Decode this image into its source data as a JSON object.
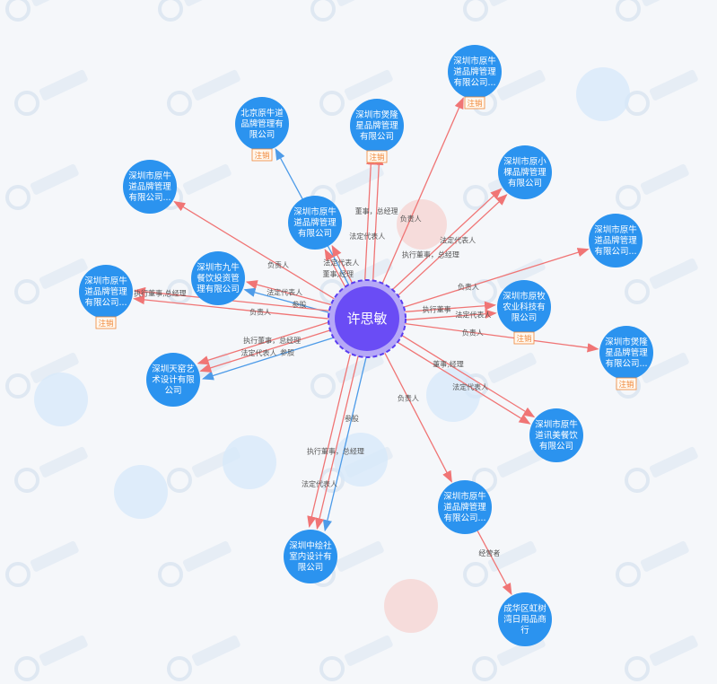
{
  "watermark": "天眼查",
  "center": {
    "label": "许思敏",
    "color": "#6a4cf5"
  },
  "colors": {
    "node": "#2b93ef",
    "edge_role": "#f07575",
    "edge_invest": "#4d9be8",
    "badge": "#f0883a"
  },
  "badge_label": "注销",
  "nodes": [
    {
      "lines": [
        "北京原牛道",
        "品牌管理有",
        "限公司"
      ],
      "badge": true
    },
    {
      "lines": [
        "深圳市煲隆",
        "星品牌管理",
        "有限公司"
      ],
      "badge": true
    },
    {
      "lines": [
        "深圳市原牛",
        "道品牌管理",
        "有限公司..."
      ],
      "badge": true
    },
    {
      "lines": [
        "深圳市原小",
        "棵品牌管理",
        "有限公司"
      ],
      "badge": false
    },
    {
      "lines": [
        "深圳市原牛",
        "道品牌管理",
        "有限公司..."
      ],
      "badge": false
    },
    {
      "lines": [
        "深圳市原牛",
        "道品牌管理",
        "有限公司"
      ],
      "badge": false
    },
    {
      "lines": [
        "深圳市原牛",
        "道品牌管理",
        "有限公司..."
      ],
      "badge": false
    },
    {
      "lines": [
        "深圳市九牛",
        "餐饮投资管",
        "理有限公司"
      ],
      "badge": false
    },
    {
      "lines": [
        "深圳市原牛",
        "道品牌管理",
        "有限公司..."
      ],
      "badge": true
    },
    {
      "lines": [
        "深圳市原牧",
        "农业科技有",
        "限公司"
      ],
      "badge": true
    },
    {
      "lines": [
        "深圳市煲隆",
        "星品牌管理",
        "有限公司..."
      ],
      "badge": true
    },
    {
      "lines": [
        "深圳天窑艺",
        "术设计有限",
        "公司"
      ],
      "badge": false
    },
    {
      "lines": [
        "深圳市原牛",
        "道讯美餐饮",
        "有限公司"
      ],
      "badge": false
    },
    {
      "lines": [
        "深圳市原牛",
        "道品牌管理",
        "有限公司..."
      ],
      "badge": false
    },
    {
      "lines": [
        "深圳中绘社",
        "室内设计有",
        "限公司"
      ],
      "badge": false
    },
    {
      "lines": [
        "成华区虹树",
        "湾日用品商",
        "行"
      ],
      "badge": false
    }
  ],
  "edges": [
    {
      "to": 0,
      "label": "",
      "type": "invest"
    },
    {
      "to": 1,
      "label": "法定代表人",
      "type": "role"
    },
    {
      "to": 1,
      "label": "董事，总经理",
      "type": "role"
    },
    {
      "to": 2,
      "label": "负责人",
      "type": "role"
    },
    {
      "to": 3,
      "label": "执行董事，总经理",
      "type": "role"
    },
    {
      "to": 3,
      "label": "法定代表人",
      "type": "role"
    },
    {
      "to": 4,
      "label": "负责人",
      "type": "role"
    },
    {
      "to": 5,
      "label": "董事,经理",
      "type": "role"
    },
    {
      "to": 5,
      "label": "法定代表人",
      "type": "role"
    },
    {
      "to": 6,
      "label": "负责人",
      "type": "role"
    },
    {
      "to": 7,
      "label": "参股",
      "type": "invest"
    },
    {
      "to": 7,
      "label": "法定代表人",
      "type": "role"
    },
    {
      "to": 8,
      "label": "负责人",
      "type": "role"
    },
    {
      "to": 8,
      "label": "执行董事,总经理",
      "type": "role"
    },
    {
      "to": 9,
      "label": "执行董事",
      "type": "role"
    },
    {
      "to": 9,
      "label": "法定代表人",
      "type": "role"
    },
    {
      "to": 10,
      "label": "负责人",
      "type": "role"
    },
    {
      "to": 11,
      "label": "参股",
      "type": "invest"
    },
    {
      "to": 11,
      "label": "法定代表人",
      "type": "role"
    },
    {
      "to": 11,
      "label": "执行董事，总经理",
      "type": "role"
    },
    {
      "to": 12,
      "label": "董事,经理",
      "type": "role"
    },
    {
      "to": 12,
      "label": "法定代表人",
      "type": "role"
    },
    {
      "to": 13,
      "label": "负责人",
      "type": "role"
    },
    {
      "to": 14,
      "label": "参股",
      "type": "invest"
    },
    {
      "to": 14,
      "label": "执行董事，总经理",
      "type": "role"
    },
    {
      "to": 14,
      "label": "法定代表人",
      "type": "role"
    },
    {
      "from": 13,
      "to": 15,
      "label": "经营者",
      "type": "role"
    }
  ]
}
